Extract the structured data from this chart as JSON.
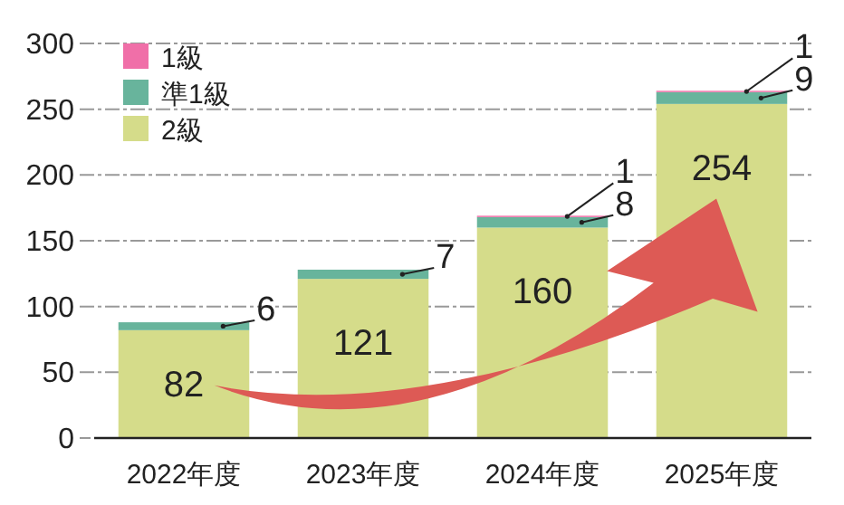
{
  "chart_data": {
    "type": "bar",
    "stacked": true,
    "categories": [
      "2022年度",
      "2023年度",
      "2024年度",
      "2025年度"
    ],
    "series": [
      {
        "name": "2級",
        "color": "#d5dc8a",
        "values": [
          82,
          121,
          160,
          254
        ]
      },
      {
        "name": "準1級",
        "color": "#68b49c",
        "values": [
          6,
          7,
          8,
          9
        ]
      },
      {
        "name": "1級",
        "color": "#f06fa8",
        "values": [
          null,
          null,
          1,
          1
        ]
      }
    ],
    "ylim": [
      0,
      300
    ],
    "yticks": [
      0,
      50,
      100,
      150,
      200,
      250,
      300
    ],
    "grid": "y",
    "legend": "top left",
    "data_labels": true
  }
}
